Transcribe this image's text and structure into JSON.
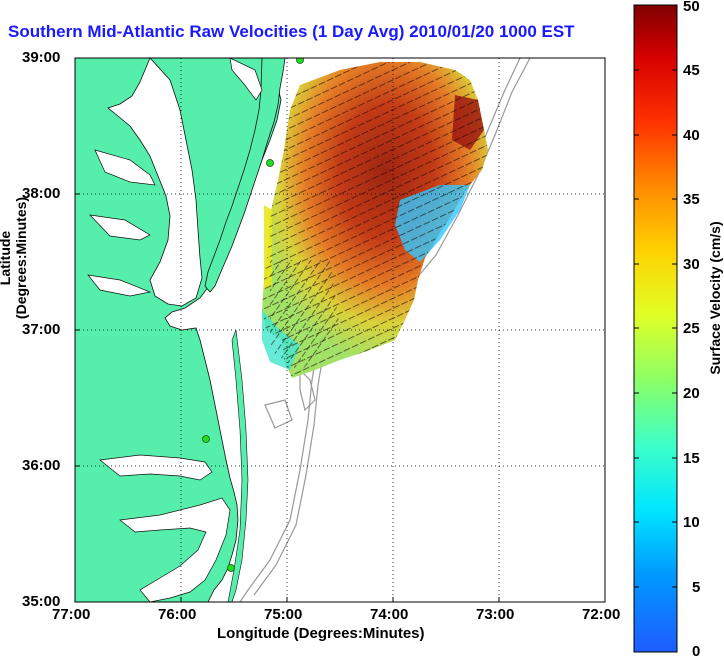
{
  "title": "Southern Mid-Atlantic Raw Velocities (1 Day Avg) 2010/01/20 1000 EST",
  "x_axis": {
    "label": "Longitude (Degrees:Minutes)",
    "ticks": [
      "77:00",
      "76:00",
      "75:00",
      "74:00",
      "73:00",
      "72:00"
    ]
  },
  "y_axis": {
    "label": "Latitude (Degrees:Minutes)",
    "ticks": [
      "39:00",
      "38:00",
      "37:00",
      "36:00",
      "35:00"
    ]
  },
  "colorbar": {
    "label": "Surface Velocity (cm/s)",
    "ticks": [
      "50",
      "45",
      "40",
      "35",
      "30",
      "25",
      "20",
      "15",
      "10",
      "5",
      "0"
    ],
    "min": 0,
    "max": 50
  },
  "colors": {
    "land": "#55eeaa",
    "title": "#1a1aff",
    "station": "#22dd22"
  },
  "grid": "dotted"
}
